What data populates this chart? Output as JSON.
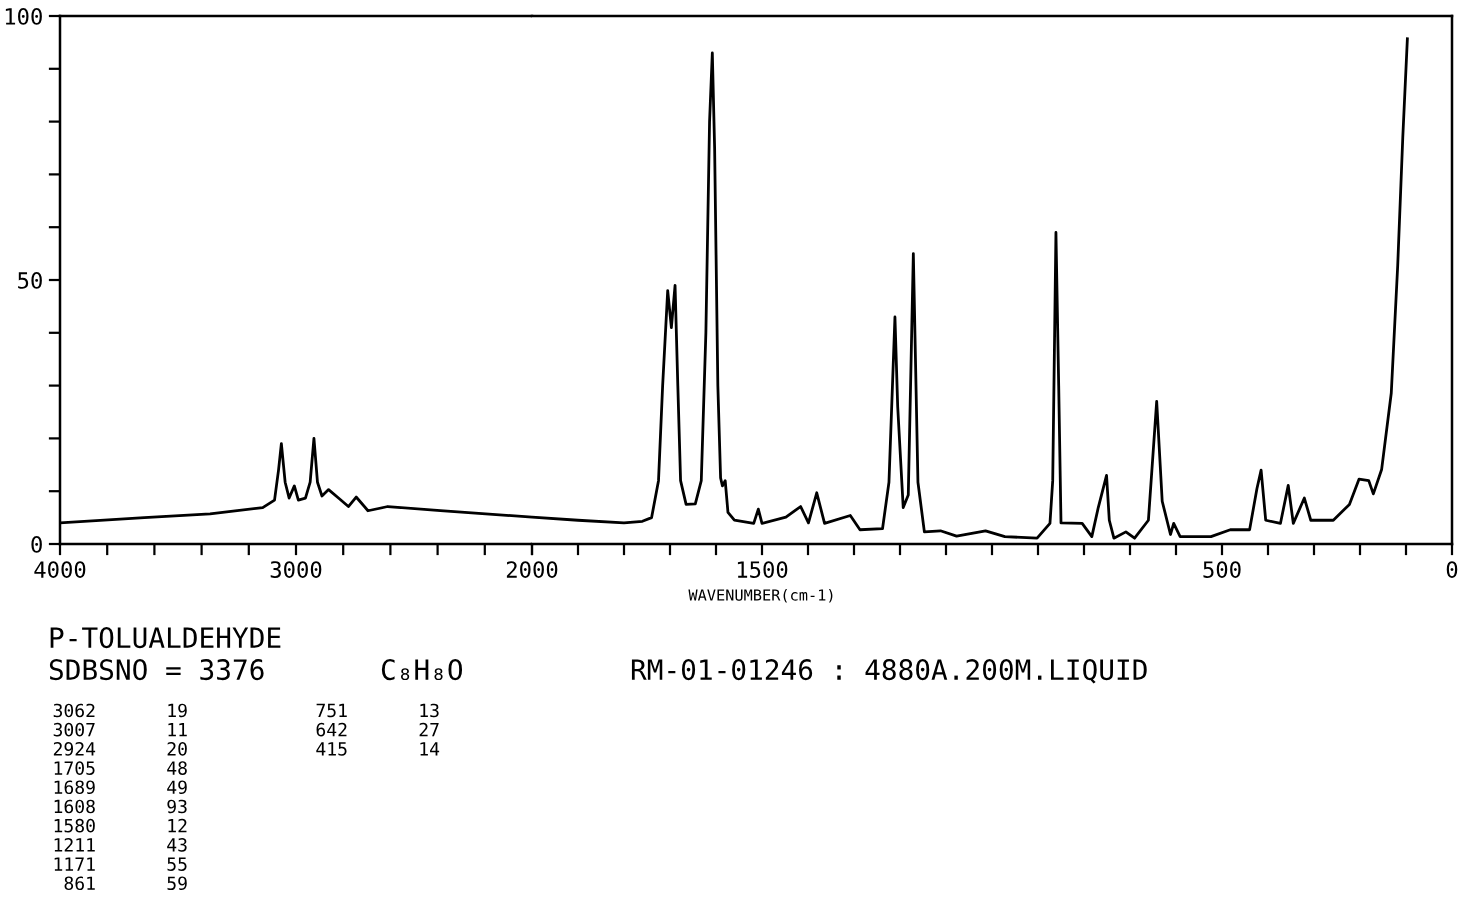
{
  "chart_data": [
    {
      "type": "line",
      "title": "P-TOLUALDEHYDE",
      "annotations": [
        "SDBSNO = 3376",
        "C₈H₈O",
        "RM-01-01246 : 4880A.200M.LIQUID",
        "3062 19",
        "3007 11",
        "2924 20",
        "1705 48",
        "1689 49",
        "1608 93",
        "1580 12",
        "1211 43",
        "1171 55",
        "861 59",
        "751 13",
        "642 27",
        "415 14"
      ],
      "x": [
        4000,
        3643,
        3364,
        3141,
        3091,
        3074,
        3062,
        3046,
        3029,
        3007,
        2990,
        2960,
        2940,
        2924,
        2909,
        2890,
        2862,
        2820,
        2778,
        2745,
        2695,
        2611,
        2388,
        2000
      ],
      "series": [
        {
          "color": "#000000",
          "values": [
            4.0,
            5.0,
            5.7,
            6.9,
            8.3,
            14,
            19,
            11.7,
            8.7,
            11,
            8.3,
            8.7,
            11.7,
            20,
            11.7,
            9.1,
            10.3,
            8.7,
            7.1,
            8.9,
            6.3,
            7.1,
            6.3,
            5.1
          ]
        }
      ],
      "xlim": [
        4000,
        2000
      ],
      "xticks": [
        4000,
        {
          "value": 3800,
          "label": null
        },
        {
          "value": 3600,
          "label": null
        },
        {
          "value": 3400,
          "label": null
        },
        {
          "value": 3200,
          "label": null
        },
        3000,
        {
          "value": 2800,
          "label": null
        },
        {
          "value": 2600,
          "label": null
        },
        {
          "value": 2400,
          "label": null
        },
        {
          "value": 2200,
          "label": null
        },
        2000
      ],
      "ylim": [
        0,
        100
      ],
      "yticks": [
        0,
        {
          "value": 10,
          "label": null
        },
        {
          "value": 20,
          "label": null
        },
        {
          "value": 30,
          "label": null
        },
        {
          "value": 40,
          "label": null
        },
        50,
        {
          "value": 60,
          "label": null
        },
        {
          "value": 70,
          "label": null
        },
        {
          "value": 80,
          "label": null
        },
        {
          "value": 90,
          "label": null
        },
        100
      ],
      "grid": false,
      "marker": "none",
      "line_style": "solid"
    },
    {
      "type": "line",
      "xlabel": "WAVENUMBER(cm-1)",
      "x": [
        2000,
        1900,
        1800,
        1760,
        1740,
        1725,
        1716,
        1705,
        1697,
        1689,
        1683,
        1677,
        1665,
        1645,
        1632,
        1622,
        1614,
        1608,
        1603,
        1596,
        1590,
        1586,
        1580,
        1574,
        1560,
        1518,
        1508,
        1500,
        1448,
        1416,
        1399,
        1381,
        1364,
        1308,
        1287,
        1238,
        1224,
        1211,
        1205,
        1193,
        1182,
        1171,
        1161,
        1147,
        1112,
        1077,
        1014,
        972,
        902,
        874,
        868,
        861,
        855,
        850,
        804,
        783,
        769,
        751,
        745,
        735,
        709,
        690,
        660,
        642,
        630,
        612,
        605,
        591,
        524,
        482,
        440,
        424,
        415,
        405,
        373,
        356,
        345,
        321,
        307,
        258,
        223,
        202,
        181,
        171,
        153,
        132,
        118,
        107,
        97
      ],
      "series": [
        {
          "color": "#000000",
          "values": [
            5.1,
            4.5,
            4.0,
            4.3,
            5.0,
            12,
            30,
            48,
            41,
            49,
            30,
            12,
            7.5,
            7.6,
            12,
            40,
            80,
            93,
            75,
            30,
            12.5,
            11,
            12,
            6,
            4.5,
            3.9,
            6.6,
            3.9,
            5.1,
            7.1,
            4.0,
            9.7,
            3.9,
            5.4,
            2.7,
            2.9,
            11.7,
            43,
            26,
            6.9,
            9.3,
            55,
            11.7,
            2.3,
            2.5,
            1.5,
            2.5,
            1.4,
            1.1,
            3.9,
            12,
            59,
            30,
            4,
            3.9,
            1.4,
            6.9,
            13,
            4.5,
            1.1,
            2.3,
            1.1,
            4.5,
            27,
            8.1,
            1.8,
            3.9,
            1.4,
            1.4,
            2.7,
            2.7,
            10.5,
            14,
            4.5,
            3.9,
            11.1,
            3.9,
            8.7,
            4.5,
            4.5,
            7.5,
            12.3,
            12,
            9.5,
            14.1,
            28.6,
            52.8,
            77,
            95.7
          ]
        }
      ],
      "xlim": [
        2000,
        0
      ],
      "xticks": [
        {
          "value": 2000,
          "label": null
        },
        {
          "value": 1900,
          "label": null
        },
        {
          "value": 1800,
          "label": null
        },
        {
          "value": 1700,
          "label": null
        },
        {
          "value": 1600,
          "label": null
        },
        1500,
        {
          "value": 1400,
          "label": null
        },
        {
          "value": 1300,
          "label": null
        },
        {
          "value": 1200,
          "label": null
        },
        {
          "value": 1100,
          "label": null
        },
        {
          "value": 1000,
          "label": null
        },
        {
          "value": 900,
          "label": null
        },
        {
          "value": 800,
          "label": null
        },
        {
          "value": 700,
          "label": null
        },
        {
          "value": 600,
          "label": null
        },
        500,
        {
          "value": 400,
          "label": null
        },
        {
          "value": 300,
          "label": null
        },
        {
          "value": 200,
          "label": null
        },
        {
          "value": 100,
          "label": null
        },
        0
      ],
      "ylim": [
        0,
        100
      ],
      "tick_labels": "x",
      "grid": false,
      "marker": "none",
      "line_style": "solid"
    }
  ]
}
